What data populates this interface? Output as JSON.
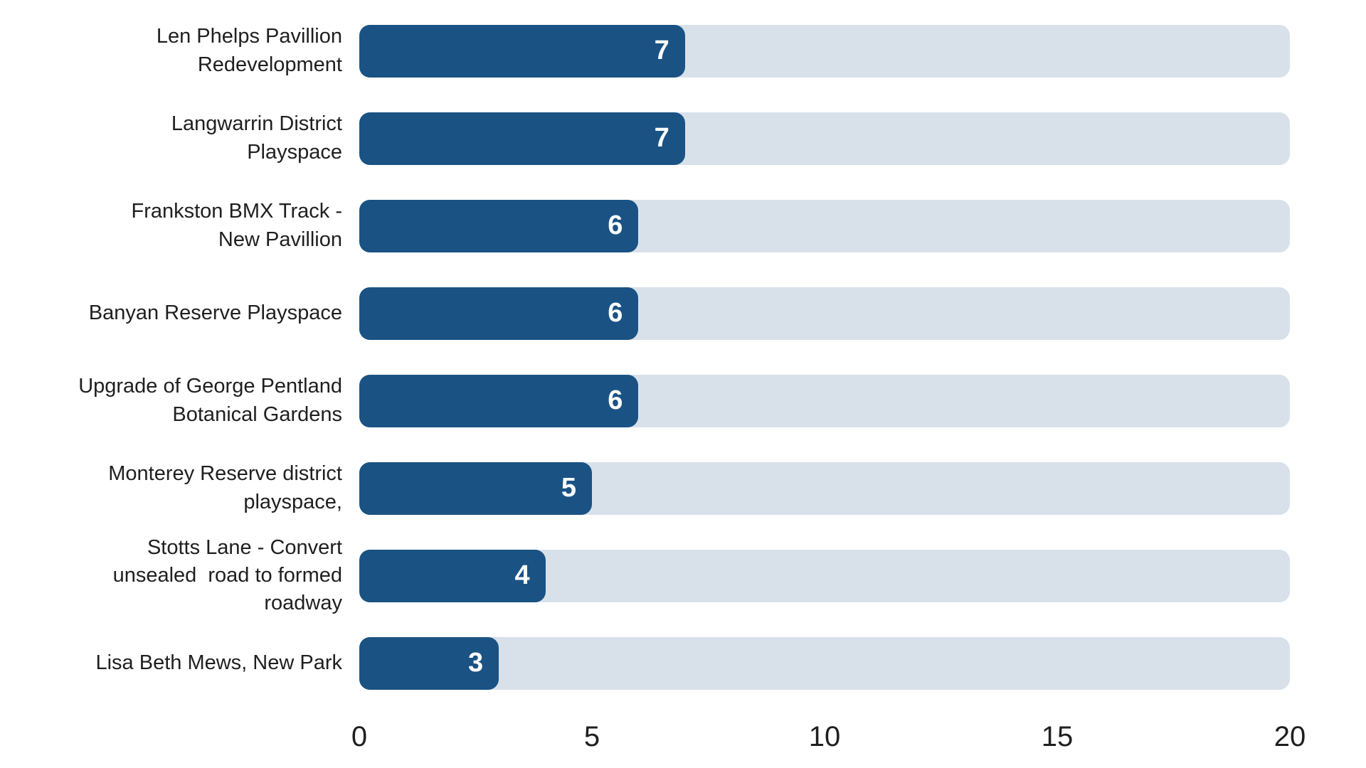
{
  "colors": {
    "bar": "#1a5284",
    "track": "#d8e1ea",
    "text": "#1f1f1f",
    "value_text": "#ffffff",
    "background": "#ffffff"
  },
  "chart_data": {
    "type": "bar",
    "orientation": "horizontal",
    "title": "",
    "xlabel": "",
    "ylabel": "",
    "categories": [
      "Len Phelps Pavillion Redevelopment",
      "Langwarrin District Playspace",
      "Frankston BMX Track - New Pavillion",
      "Banyan Reserve Playspace",
      "Upgrade of George Pentland Botanical Gardens",
      "Monterey Reserve district playspace,",
      "Stotts Lane - Convert unsealed  road to formed roadway",
      "Lisa Beth Mews, New Park"
    ],
    "values": [
      7,
      7,
      6,
      6,
      6,
      5,
      4,
      3
    ],
    "value_labels_shown": true,
    "value_label_position": "inside-end",
    "xlim": [
      0,
      20
    ],
    "x_ticks": [
      0,
      5,
      10,
      15,
      20
    ],
    "grid": false,
    "legend": false,
    "label_display_lines": [
      "Len Phelps Pavillion\nRedevelopment",
      "Langwarrin District\nPlayspace",
      "Frankston BMX Track -\nNew Pavillion",
      "Banyan Reserve Playspace",
      "Upgrade of George Pentland\nBotanical Gardens",
      "Monterey Reserve district\nplayspace,",
      "Stotts Lane - Convert\nunsealed  road to formed\nroadway",
      "Lisa Beth Mews, New Park"
    ]
  }
}
